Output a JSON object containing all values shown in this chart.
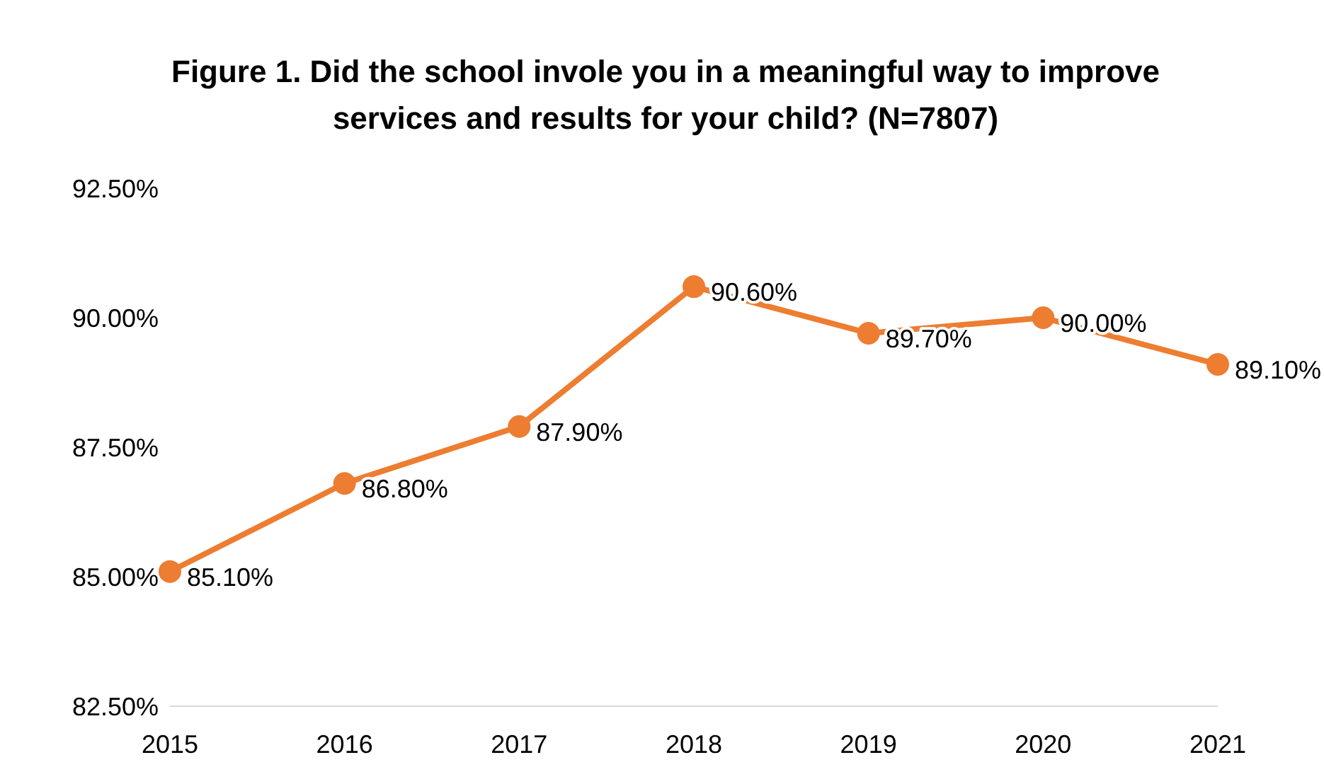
{
  "chart_data": {
    "type": "line",
    "title": "Figure 1. Did the school invole you in a meaningful way to improve services and results for your child? (N=7807)",
    "categories": [
      "2015",
      "2016",
      "2017",
      "2018",
      "2019",
      "2020",
      "2021"
    ],
    "series": [
      {
        "color": "#ed7d31",
        "values": [
          85.1,
          86.8,
          87.9,
          90.6,
          89.7,
          90.0,
          89.1
        ],
        "value_labels": [
          "85.10%",
          "86.80%",
          "87.90%",
          "90.60%",
          "89.70%",
          "90.00%",
          "89.10%"
        ]
      }
    ],
    "ylim": [
      82.5,
      92.5
    ],
    "yticks": [
      {
        "value": 82.5,
        "label": "82.50%"
      },
      {
        "value": 85,
        "label": "85.00%"
      },
      {
        "value": 87.5,
        "label": "87.50%"
      },
      {
        "value": 90,
        "label": "90.00%"
      },
      {
        "value": 92.5,
        "label": "92.50%"
      }
    ],
    "grid": false,
    "legend": false,
    "marker": "circle",
    "line_style": "solid"
  }
}
